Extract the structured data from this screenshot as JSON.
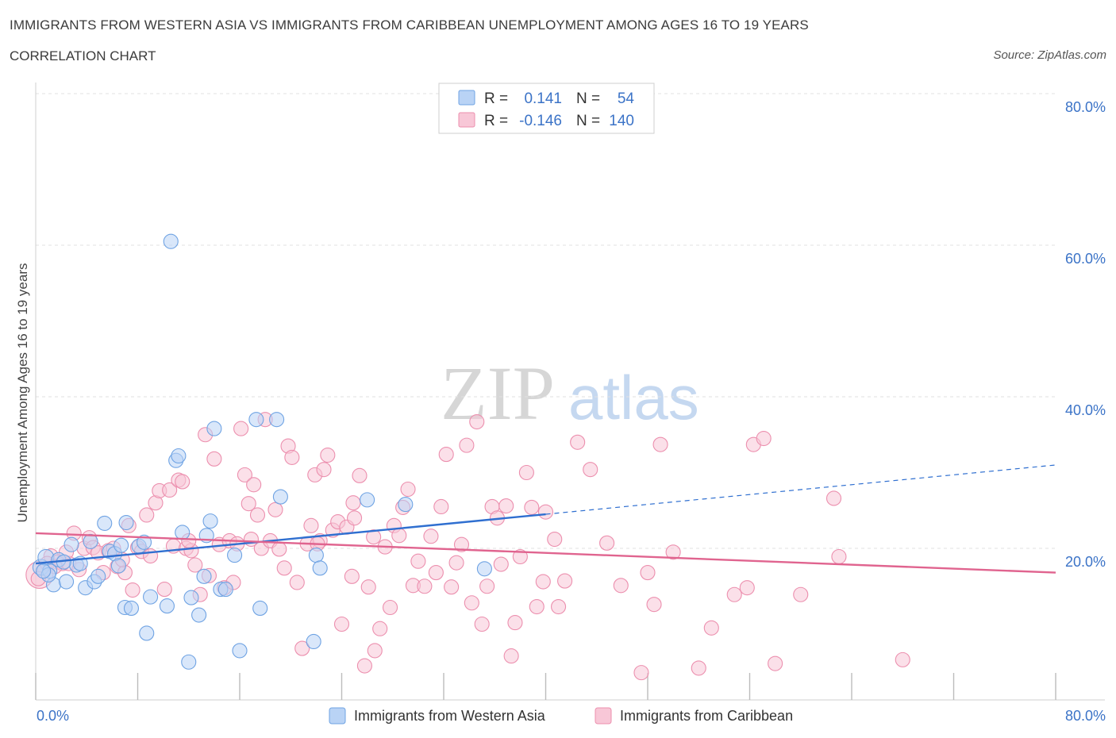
{
  "header": {
    "title": "IMMIGRANTS FROM WESTERN ASIA VS IMMIGRANTS FROM CARIBBEAN UNEMPLOYMENT AMONG AGES 16 TO 19 YEARS",
    "subtitle": "CORRELATION CHART",
    "source": "Source: ZipAtlas.com"
  },
  "watermark": {
    "zip": "ZIP",
    "atlas": "atlas"
  },
  "legend_box": {
    "rows": [
      {
        "r_label": "R =",
        "r_value": "0.141",
        "n_label": "N =",
        "n_value": "54"
      },
      {
        "r_label": "R =",
        "r_value": "-0.146",
        "n_label": "N =",
        "n_value": "140"
      }
    ]
  },
  "colors": {
    "blue": "#6fa3e3",
    "blue_fill": "#b9d3f5",
    "blue_line": "#2f6fd0",
    "pink": "#ec8fae",
    "pink_fill": "#f8c7d7",
    "pink_line": "#e0648f",
    "accent_text": "#3b73c7"
  },
  "chart_data": {
    "type": "scatter",
    "title": "IMMIGRANTS FROM WESTERN ASIA VS IMMIGRANTS FROM CARIBBEAN UNEMPLOYMENT AMONG AGES 16 TO 19 YEARS",
    "xlabel": "",
    "ylabel": "Unemployment Among Ages 16 to 19 years",
    "xlim": [
      0,
      80
    ],
    "ylim": [
      0,
      80
    ],
    "x_tick_labels": [
      "0.0%",
      "80.0%"
    ],
    "y_tick_labels": [
      "20.0%",
      "40.0%",
      "60.0%",
      "80.0%"
    ],
    "y_ticks": [
      20,
      40,
      60,
      80
    ],
    "legend_position": "bottom-center",
    "series": [
      {
        "name": "Immigrants from Western Asia",
        "color": "blue",
        "R": 0.141,
        "N": 54,
        "trend": {
          "x0": 0,
          "y0": 18.0,
          "x1": 40,
          "y1": 24.5,
          "dash_x1": 80,
          "dash_y1": 31.0
        },
        "points": [
          [
            0.4,
            17.5
          ],
          [
            0.8,
            18.8
          ],
          [
            1.1,
            17.0
          ],
          [
            1.4,
            15.2
          ],
          [
            1.8,
            18.5
          ],
          [
            2.4,
            15.6
          ],
          [
            2.8,
            20.5
          ],
          [
            3.2,
            17.8
          ],
          [
            3.5,
            18.0
          ],
          [
            3.9,
            14.8
          ],
          [
            4.3,
            20.9
          ],
          [
            4.6,
            15.6
          ],
          [
            4.9,
            16.3
          ],
          [
            5.4,
            23.3
          ],
          [
            5.8,
            19.6
          ],
          [
            6.2,
            19.3
          ],
          [
            6.5,
            17.7
          ],
          [
            6.7,
            20.4
          ],
          [
            7.0,
            12.2
          ],
          [
            7.5,
            12.1
          ],
          [
            7.1,
            23.4
          ],
          [
            8.1,
            20.3
          ],
          [
            8.5,
            20.8
          ],
          [
            8.7,
            8.8
          ],
          [
            9.0,
            13.6
          ],
          [
            10.3,
            12.4
          ],
          [
            10.6,
            60.5
          ],
          [
            11.0,
            31.6
          ],
          [
            11.2,
            32.2
          ],
          [
            11.5,
            22.1
          ],
          [
            12.0,
            5.0
          ],
          [
            12.2,
            13.5
          ],
          [
            12.8,
            11.2
          ],
          [
            13.4,
            21.7
          ],
          [
            13.2,
            16.3
          ],
          [
            13.7,
            23.6
          ],
          [
            14.0,
            35.8
          ],
          [
            14.5,
            14.6
          ],
          [
            14.9,
            14.6
          ],
          [
            15.6,
            19.1
          ],
          [
            16.0,
            6.5
          ],
          [
            17.3,
            37.0
          ],
          [
            17.6,
            12.1
          ],
          [
            18.9,
            37.0
          ],
          [
            19.2,
            26.8
          ],
          [
            21.8,
            7.7
          ],
          [
            22.0,
            19.1
          ],
          [
            22.3,
            17.4
          ],
          [
            26.0,
            26.4
          ],
          [
            29.0,
            25.8
          ],
          [
            35.2,
            17.3
          ],
          [
            1.0,
            16.5
          ],
          [
            0.6,
            17.0
          ],
          [
            2.2,
            18.2
          ]
        ]
      },
      {
        "name": "Immigrants from Caribbean",
        "color": "pink",
        "R": -0.146,
        "N": 140,
        "trend": {
          "x0": 0,
          "y0": 22.0,
          "x1": 80,
          "y1": 16.8
        },
        "points": [
          [
            0.3,
            16.5
          ],
          [
            0.7,
            17.3
          ],
          [
            1.2,
            19.0
          ],
          [
            1.7,
            18.2
          ],
          [
            2.1,
            18.0
          ],
          [
            2.6,
            18.0
          ],
          [
            3.0,
            22.0
          ],
          [
            3.4,
            17.2
          ],
          [
            3.8,
            20.0
          ],
          [
            4.2,
            21.4
          ],
          [
            4.5,
            20.1
          ],
          [
            4.9,
            19.4
          ],
          [
            5.3,
            16.8
          ],
          [
            5.7,
            19.7
          ],
          [
            6.1,
            20.0
          ],
          [
            6.4,
            17.6
          ],
          [
            7.0,
            16.8
          ],
          [
            7.3,
            23.0
          ],
          [
            7.6,
            14.5
          ],
          [
            8.0,
            20.1
          ],
          [
            8.3,
            19.6
          ],
          [
            8.7,
            24.4
          ],
          [
            9.0,
            19.0
          ],
          [
            9.4,
            26.0
          ],
          [
            9.7,
            27.6
          ],
          [
            10.1,
            14.6
          ],
          [
            10.5,
            27.7
          ],
          [
            10.8,
            20.3
          ],
          [
            11.2,
            29.0
          ],
          [
            11.5,
            28.8
          ],
          [
            11.8,
            20.0
          ],
          [
            12.2,
            19.7
          ],
          [
            12.5,
            17.8
          ],
          [
            12.9,
            13.9
          ],
          [
            13.3,
            35.0
          ],
          [
            13.6,
            16.4
          ],
          [
            14.0,
            31.8
          ],
          [
            14.4,
            20.5
          ],
          [
            14.8,
            14.8
          ],
          [
            15.2,
            21.0
          ],
          [
            15.5,
            15.5
          ],
          [
            15.8,
            20.6
          ],
          [
            16.1,
            35.8
          ],
          [
            16.4,
            29.7
          ],
          [
            16.7,
            25.9
          ],
          [
            17.1,
            28.4
          ],
          [
            17.4,
            24.4
          ],
          [
            17.7,
            20.0
          ],
          [
            18.0,
            37.0
          ],
          [
            18.4,
            21.0
          ],
          [
            18.8,
            25.1
          ],
          [
            19.1,
            19.9
          ],
          [
            19.5,
            17.4
          ],
          [
            19.8,
            33.5
          ],
          [
            20.1,
            32.0
          ],
          [
            20.5,
            15.5
          ],
          [
            20.9,
            6.8
          ],
          [
            21.3,
            20.6
          ],
          [
            21.6,
            23.0
          ],
          [
            21.9,
            29.7
          ],
          [
            22.3,
            21.0
          ],
          [
            22.6,
            30.4
          ],
          [
            22.9,
            32.3
          ],
          [
            23.3,
            22.4
          ],
          [
            23.7,
            23.5
          ],
          [
            24.0,
            10.0
          ],
          [
            24.4,
            22.8
          ],
          [
            24.8,
            16.3
          ],
          [
            25.0,
            24.0
          ],
          [
            25.4,
            29.6
          ],
          [
            25.8,
            4.5
          ],
          [
            26.1,
            14.9
          ],
          [
            26.6,
            6.5
          ],
          [
            27.0,
            9.4
          ],
          [
            27.4,
            20.2
          ],
          [
            27.8,
            12.2
          ],
          [
            28.1,
            23.0
          ],
          [
            28.5,
            21.7
          ],
          [
            28.8,
            25.4
          ],
          [
            29.2,
            27.8
          ],
          [
            29.6,
            15.1
          ],
          [
            30.0,
            18.3
          ],
          [
            30.5,
            15.0
          ],
          [
            31.0,
            21.6
          ],
          [
            31.4,
            16.8
          ],
          [
            31.8,
            25.5
          ],
          [
            32.2,
            32.4
          ],
          [
            32.6,
            14.9
          ],
          [
            33.0,
            18.1
          ],
          [
            33.4,
            20.5
          ],
          [
            33.8,
            33.6
          ],
          [
            34.2,
            12.8
          ],
          [
            34.6,
            36.7
          ],
          [
            35.0,
            10.0
          ],
          [
            35.4,
            15.0
          ],
          [
            35.8,
            25.5
          ],
          [
            36.2,
            24.0
          ],
          [
            36.5,
            17.9
          ],
          [
            36.9,
            25.6
          ],
          [
            37.3,
            5.8
          ],
          [
            37.6,
            10.2
          ],
          [
            38.0,
            18.9
          ],
          [
            38.5,
            30.0
          ],
          [
            38.9,
            25.4
          ],
          [
            39.3,
            12.3
          ],
          [
            39.8,
            15.6
          ],
          [
            40.0,
            24.8
          ],
          [
            40.7,
            21.2
          ],
          [
            41.0,
            12.3
          ],
          [
            41.5,
            15.7
          ],
          [
            42.5,
            34.0
          ],
          [
            43.5,
            30.4
          ],
          [
            44.8,
            20.7
          ],
          [
            45.9,
            15.1
          ],
          [
            47.5,
            3.6
          ],
          [
            48.0,
            16.8
          ],
          [
            48.5,
            12.6
          ],
          [
            49.0,
            33.7
          ],
          [
            50.0,
            19.5
          ],
          [
            52.0,
            4.2
          ],
          [
            53.0,
            9.5
          ],
          [
            54.8,
            13.9
          ],
          [
            55.8,
            14.8
          ],
          [
            56.3,
            33.7
          ],
          [
            57.1,
            34.5
          ],
          [
            58.0,
            4.8
          ],
          [
            60.0,
            13.9
          ],
          [
            62.6,
            26.6
          ],
          [
            63.0,
            18.9
          ],
          [
            68.0,
            5.3
          ],
          [
            0.2,
            16.0
          ],
          [
            0.9,
            18.0
          ],
          [
            1.5,
            17.6
          ],
          [
            2.4,
            19.5
          ],
          [
            6.8,
            18.5
          ],
          [
            12.0,
            21.0
          ],
          [
            16.9,
            21.2
          ],
          [
            22.1,
            20.6
          ],
          [
            24.9,
            26.0
          ],
          [
            26.5,
            21.5
          ]
        ]
      }
    ]
  }
}
